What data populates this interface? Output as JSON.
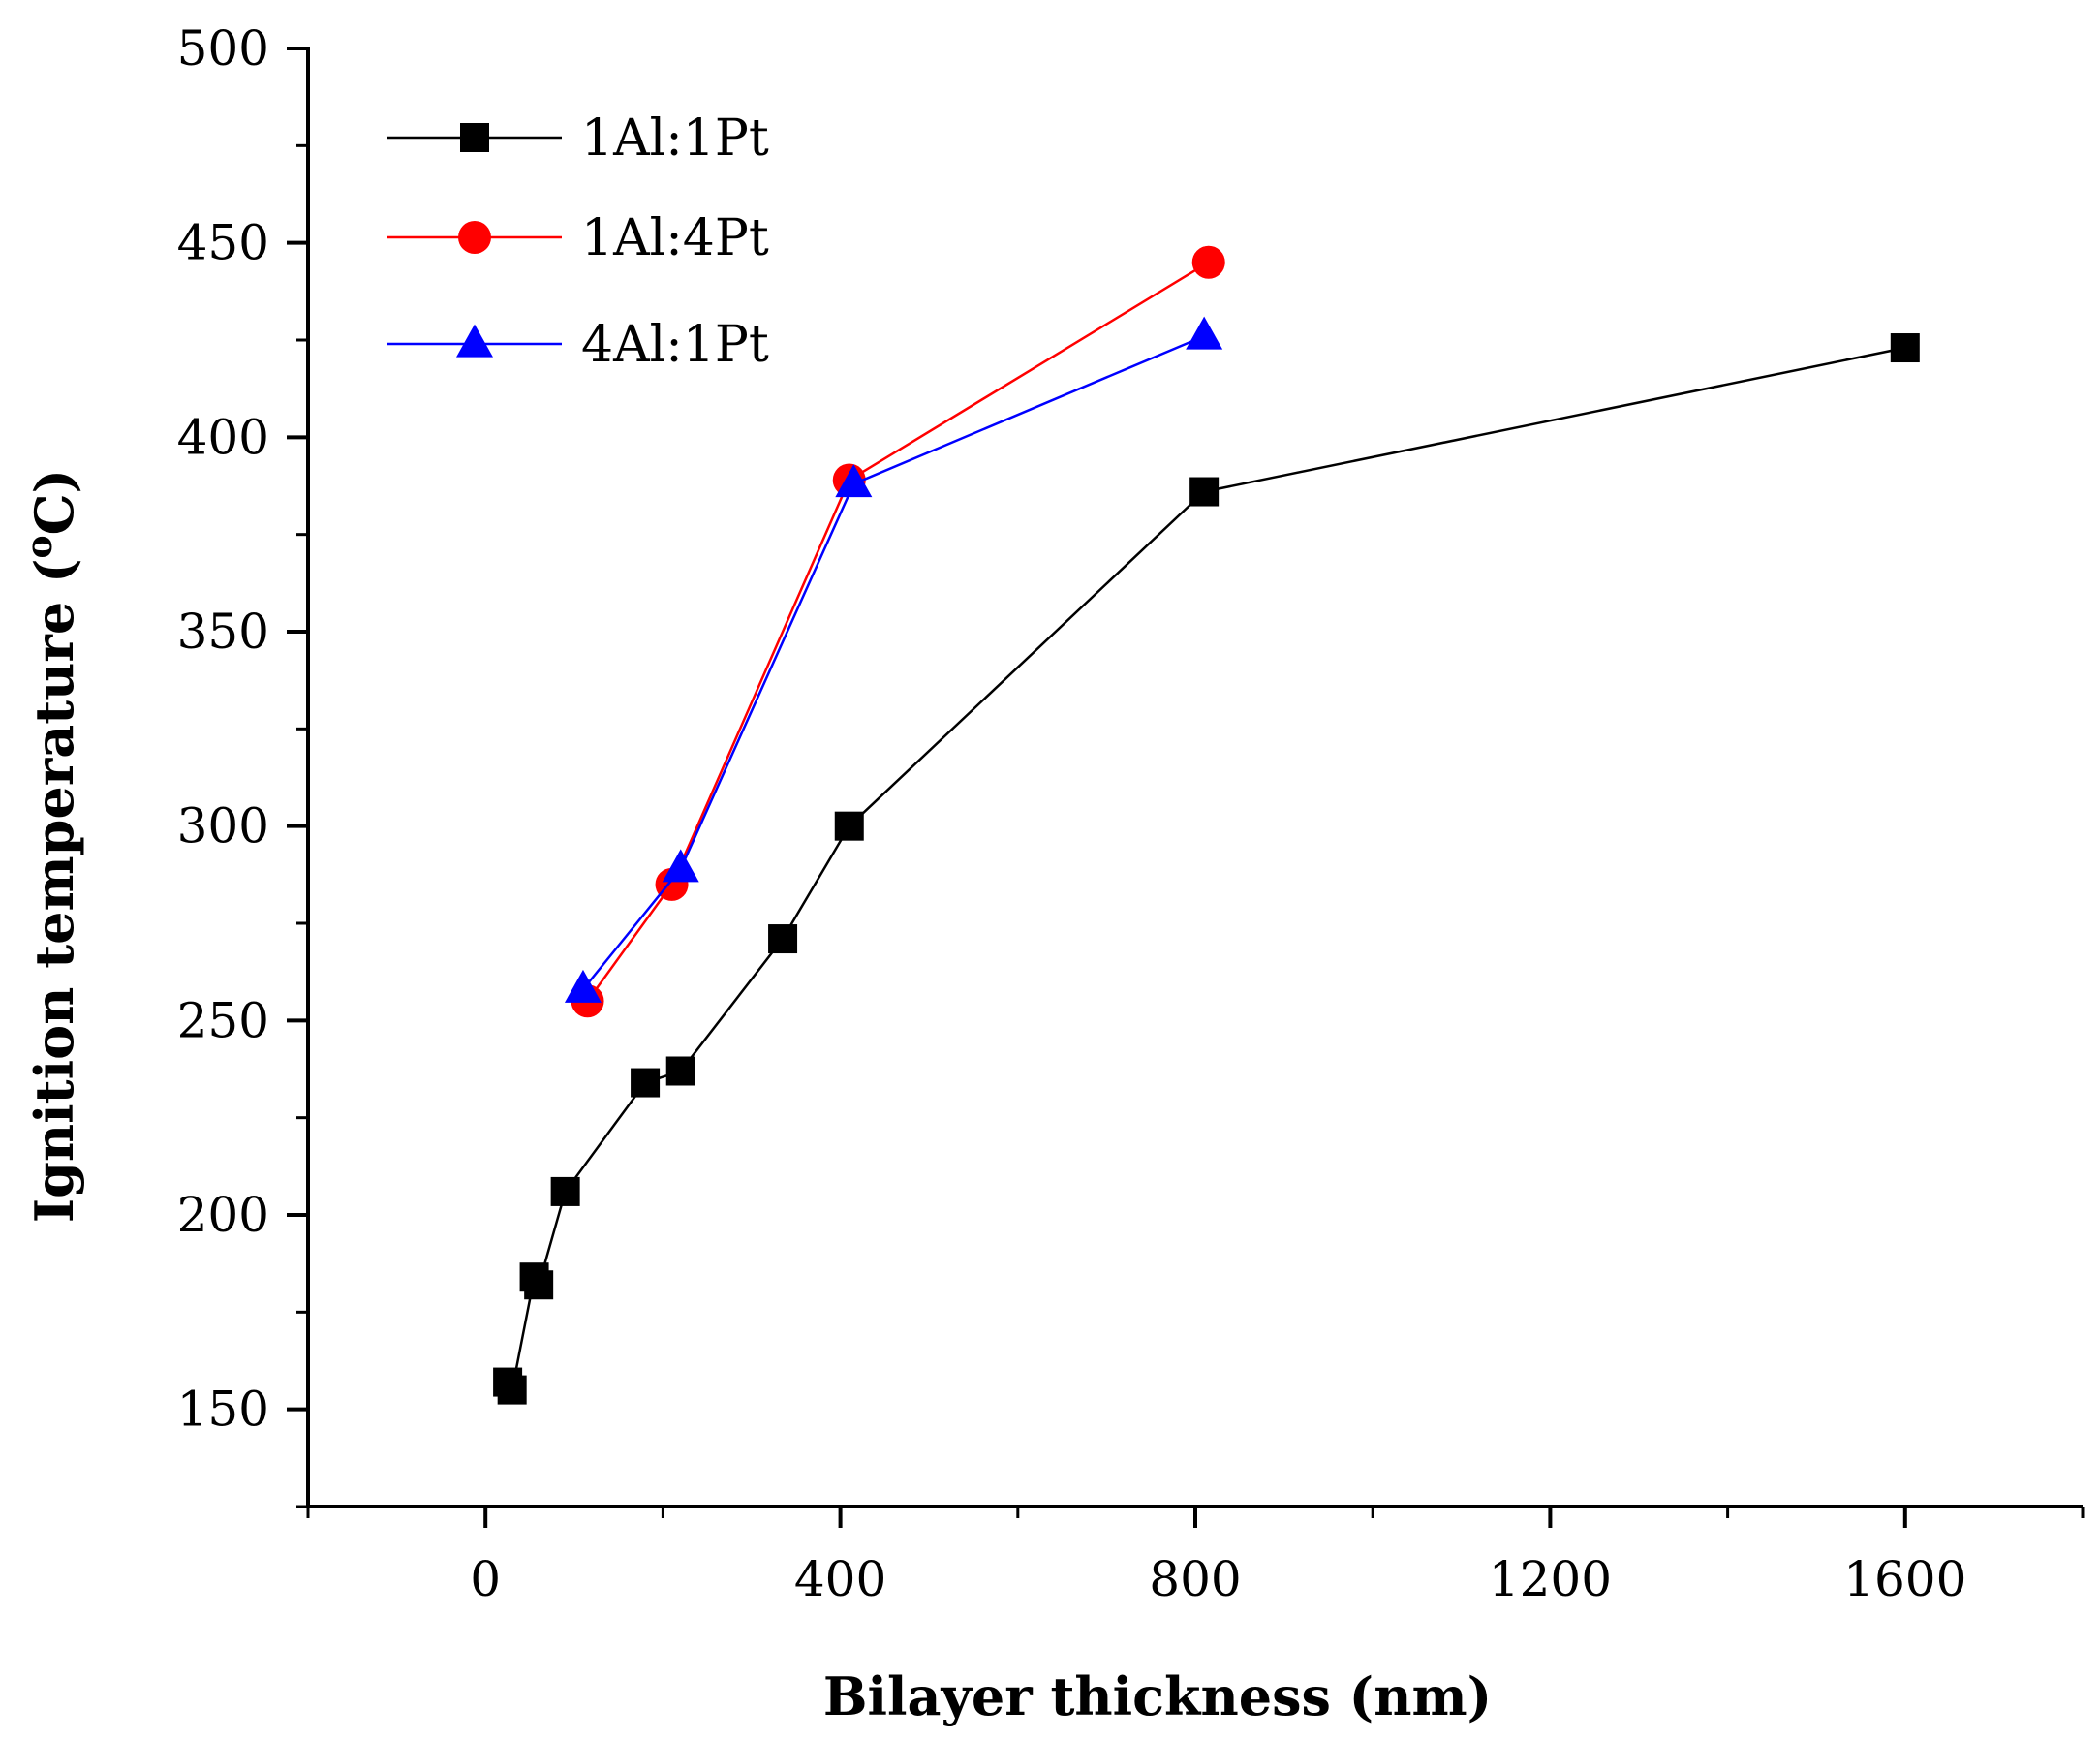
{
  "chart_data": {
    "type": "line",
    "title": "",
    "xlabel": "Bilayer thickness (nm)",
    "ylabel_main": "Ignition temperature (",
    "ylabel_sup": "o",
    "ylabel_end": "C)",
    "xlim": [
      -200,
      1800
    ],
    "ylim": [
      125,
      500
    ],
    "xticks": [
      0,
      400,
      800,
      1200,
      1600
    ],
    "xticks_minor": [
      -200,
      200,
      600,
      1000,
      1400,
      1800
    ],
    "yticks": [
      150,
      200,
      250,
      300,
      350,
      400,
      450,
      500
    ],
    "yticks_minor": [
      125,
      175,
      225,
      275,
      325,
      375,
      425,
      475
    ],
    "legend_position": "top-left",
    "series": [
      {
        "name": "1Al:1Pt",
        "color": "#000000",
        "marker": "square",
        "x": [
          25,
          30,
          55,
          60,
          90,
          180,
          220,
          335,
          410,
          810,
          1600
        ],
        "y": [
          157,
          155,
          184,
          182,
          206,
          234,
          237,
          271,
          300,
          386,
          423
        ]
      },
      {
        "name": "1Al:4Pt",
        "color": "#ff0000",
        "marker": "circle",
        "x": [
          115,
          210,
          410,
          815
        ],
        "y": [
          255,
          285,
          389,
          445
        ]
      },
      {
        "name": "4Al:1Pt",
        "color": "#0000ff",
        "marker": "triangle",
        "x": [
          110,
          220,
          415,
          810
        ],
        "y": [
          258,
          289,
          388,
          426
        ]
      }
    ]
  }
}
